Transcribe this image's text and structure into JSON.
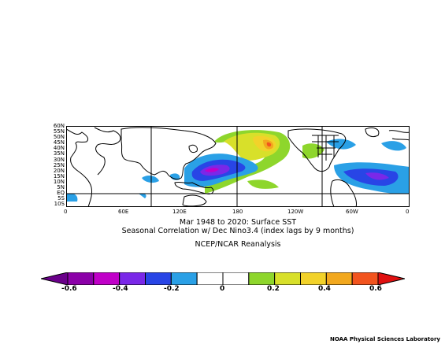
{
  "map": {
    "lat_labels": [
      "60N",
      "55N",
      "50N",
      "45N",
      "40N",
      "35N",
      "30N",
      "25N",
      "20N",
      "15N",
      "10N",
      "5N",
      "EQ",
      "5S",
      "10S"
    ],
    "lon_labels": [
      "0",
      "60E",
      "120E",
      "180",
      "120W",
      "60W",
      "0"
    ],
    "title_line1": "Mar 1948 to 2020: Surface SST",
    "title_line2": "Seasonal Correlation w/ Dec Nino3.4 (index lags by 9 months)",
    "dataset": "NCEP/NCAR Reanalysis"
  },
  "colorbar": {
    "labels": [
      "-0.6",
      "-0.4",
      "-0.2",
      "0",
      "0.2",
      "0.4",
      "0.6"
    ],
    "colors": [
      "#8b00a8",
      "#c000c8",
      "#7a28e8",
      "#2845e6",
      "#2aa0e6",
      "#ffffff",
      "#ffffff",
      "#8ed62c",
      "#d8e02a",
      "#f2d22a",
      "#f2a81e",
      "#f2541e"
    ],
    "over_color": "#e01010",
    "under_color": "#6a008a"
  },
  "credit": "NOAA Physical Sciences Laboratory"
}
